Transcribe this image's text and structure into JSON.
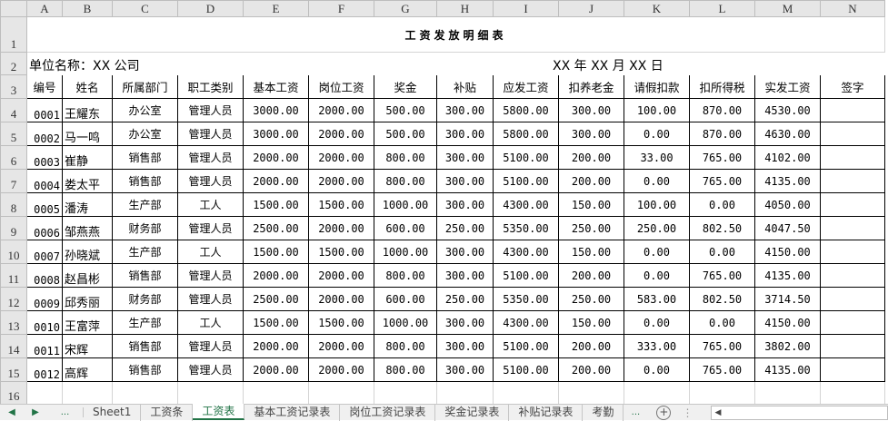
{
  "columns": [
    "A",
    "B",
    "C",
    "D",
    "E",
    "F",
    "G",
    "H",
    "I",
    "J",
    "K",
    "L",
    "M",
    "N"
  ],
  "row_numbers": [
    "1",
    "2",
    "3",
    "4",
    "5",
    "6",
    "7",
    "8",
    "9",
    "10",
    "11",
    "12",
    "13",
    "14",
    "15",
    "16"
  ],
  "sheet": {
    "title": "工资发放明细表",
    "unit_label": "单位名称：XX 公司",
    "date_label": "XX 年 XX 月 XX 日",
    "headers": [
      "编号",
      "姓名",
      "所属部门",
      "职工类别",
      "基本工资",
      "岗位工资",
      "奖金",
      "补贴",
      "应发工资",
      "扣养老金",
      "请假扣款",
      "扣所得税",
      "实发工资",
      "签字"
    ],
    "rows": [
      [
        "0001",
        "王耀东",
        "办公室",
        "管理人员",
        "3000.00",
        "2000.00",
        "500.00",
        "300.00",
        "5800.00",
        "300.00",
        "100.00",
        "870.00",
        "4530.00",
        ""
      ],
      [
        "0002",
        "马一鸣",
        "办公室",
        "管理人员",
        "3000.00",
        "2000.00",
        "500.00",
        "300.00",
        "5800.00",
        "300.00",
        "0.00",
        "870.00",
        "4630.00",
        ""
      ],
      [
        "0003",
        "崔静",
        "销售部",
        "管理人员",
        "2000.00",
        "2000.00",
        "800.00",
        "300.00",
        "5100.00",
        "200.00",
        "33.00",
        "765.00",
        "4102.00",
        ""
      ],
      [
        "0004",
        "娄太平",
        "销售部",
        "管理人员",
        "2000.00",
        "2000.00",
        "800.00",
        "300.00",
        "5100.00",
        "200.00",
        "0.00",
        "765.00",
        "4135.00",
        ""
      ],
      [
        "0005",
        "潘涛",
        "生产部",
        "工人",
        "1500.00",
        "1500.00",
        "1000.00",
        "300.00",
        "4300.00",
        "150.00",
        "100.00",
        "0.00",
        "4050.00",
        ""
      ],
      [
        "0006",
        "邹燕燕",
        "财务部",
        "管理人员",
        "2500.00",
        "2000.00",
        "600.00",
        "250.00",
        "5350.00",
        "250.00",
        "250.00",
        "802.50",
        "4047.50",
        ""
      ],
      [
        "0007",
        "孙晓斌",
        "生产部",
        "工人",
        "1500.00",
        "1500.00",
        "1000.00",
        "300.00",
        "4300.00",
        "150.00",
        "0.00",
        "0.00",
        "4150.00",
        ""
      ],
      [
        "0008",
        "赵昌彬",
        "销售部",
        "管理人员",
        "2000.00",
        "2000.00",
        "800.00",
        "300.00",
        "5100.00",
        "200.00",
        "0.00",
        "765.00",
        "4135.00",
        ""
      ],
      [
        "0009",
        "邱秀丽",
        "财务部",
        "管理人员",
        "2500.00",
        "2000.00",
        "600.00",
        "250.00",
        "5350.00",
        "250.00",
        "583.00",
        "802.50",
        "3714.50",
        ""
      ],
      [
        "0010",
        "王富萍",
        "生产部",
        "工人",
        "1500.00",
        "1500.00",
        "1000.00",
        "300.00",
        "4300.00",
        "150.00",
        "0.00",
        "0.00",
        "4150.00",
        ""
      ],
      [
        "0011",
        "宋辉",
        "销售部",
        "管理人员",
        "2000.00",
        "2000.00",
        "800.00",
        "300.00",
        "5100.00",
        "200.00",
        "333.00",
        "765.00",
        "3802.00",
        ""
      ],
      [
        "0012",
        "高辉",
        "销售部",
        "管理人员",
        "2000.00",
        "2000.00",
        "800.00",
        "300.00",
        "5100.00",
        "200.00",
        "0.00",
        "765.00",
        "4135.00",
        ""
      ]
    ]
  },
  "tabs": {
    "nav_prev": "◀",
    "nav_next": "▶",
    "more_left": "...",
    "items": [
      "Sheet1",
      "工资条",
      "工资表",
      "基本工资记录表",
      "岗位工资记录表",
      "奖金记录表",
      "补贴记录表",
      "考勤"
    ],
    "active": "工资表",
    "more_right": "...",
    "add": "+",
    "scroll_left": "◀"
  },
  "colors": {
    "accent": "#217346",
    "header_bg": "#e6e6e6"
  }
}
